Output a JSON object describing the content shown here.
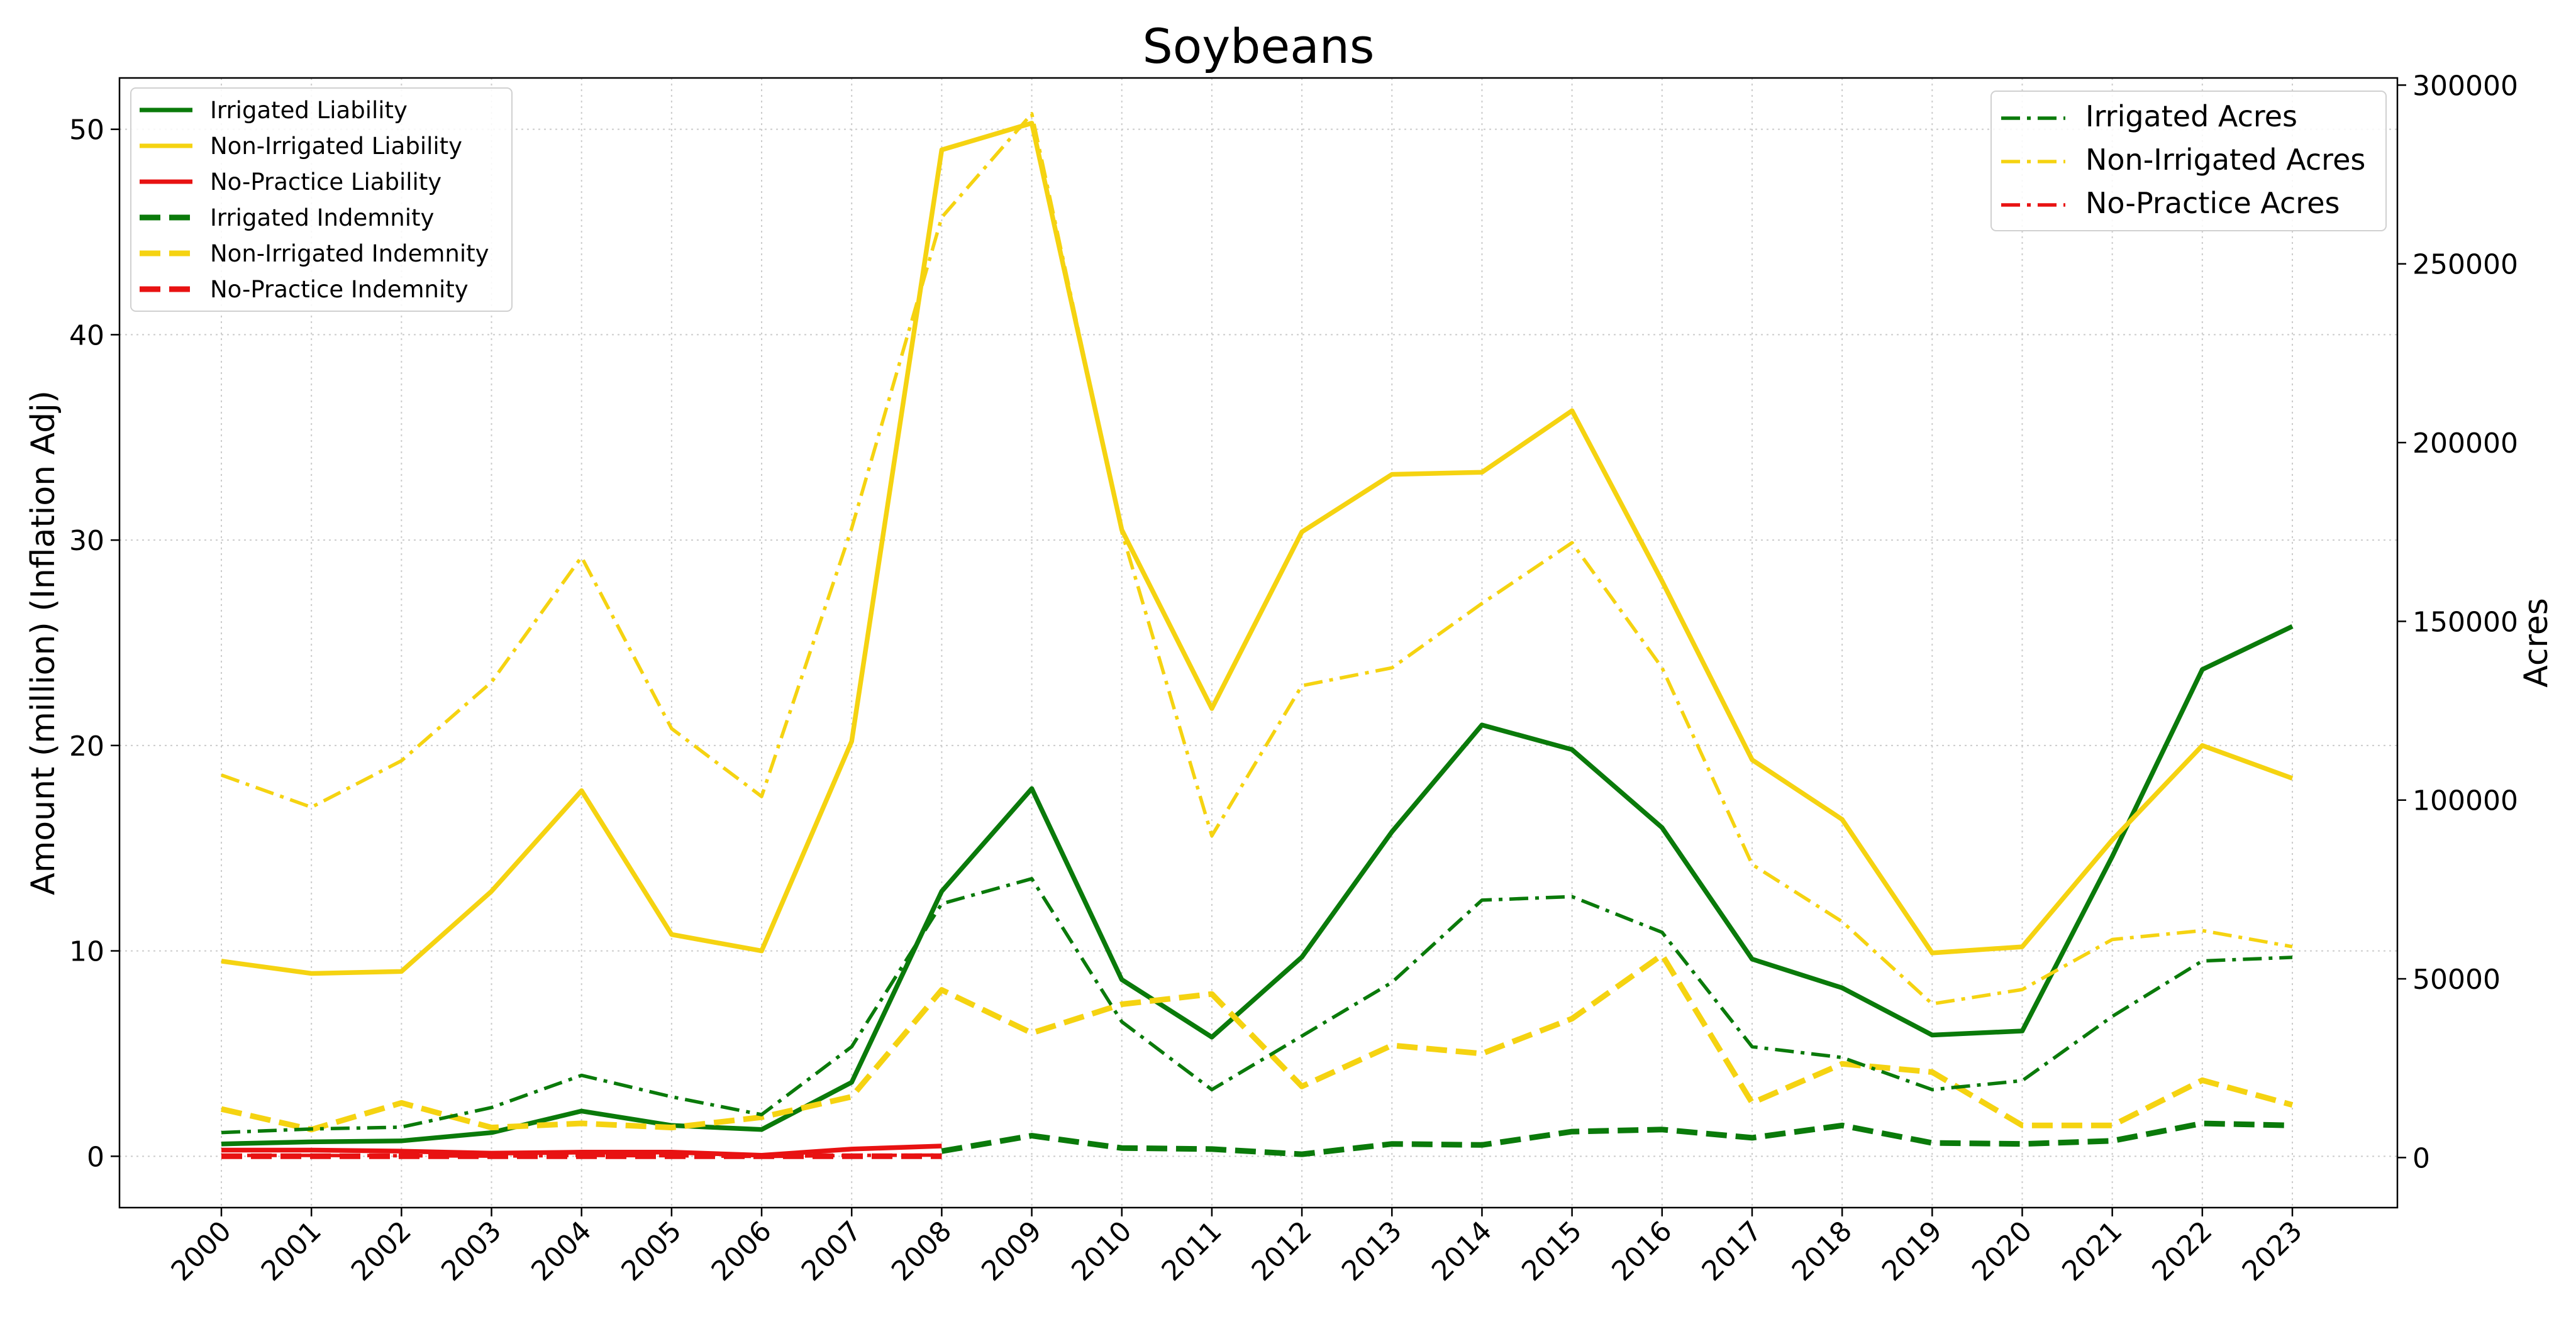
{
  "chart_data": {
    "type": "line",
    "title": "Soybeans",
    "ylabel_left": "Amount (million) (Inflation Adj)",
    "ylabel_right": "Acres",
    "xlabel": "",
    "grid": true,
    "categories": [
      "2000",
      "2001",
      "2002",
      "2003",
      "2004",
      "2005",
      "2006",
      "2007",
      "2008",
      "2009",
      "2010",
      "2011",
      "2012",
      "2013",
      "2014",
      "2015",
      "2016",
      "2017",
      "2018",
      "2019",
      "2020",
      "2021",
      "2022",
      "2023"
    ],
    "ylim_left": [
      -2.5,
      52.5
    ],
    "yticks_left": [
      "0",
      "10",
      "20",
      "30",
      "40",
      "50"
    ],
    "ylim_right": [
      -14000,
      302000
    ],
    "yticks_right": [
      "0",
      "50000",
      "100000",
      "150000",
      "200000",
      "250000",
      "300000"
    ],
    "legend_left": {
      "placement": "upper-left",
      "entries": [
        "Irrigated Liability",
        "Non-Irrigated Liability",
        "No-Practice Liability",
        "Irrigated Indemnity",
        "Non-Irrigated Indemnity",
        "No-Practice Indemnity"
      ]
    },
    "legend_right": {
      "placement": "upper-right",
      "entries": [
        "Irrigated Acres",
        "Non-Irrigated Acres",
        "No-Practice Acres"
      ]
    },
    "series": [
      {
        "name": "Irrigated Liability",
        "axis": "left",
        "style": "solid",
        "color": "#0a7a0a",
        "values": [
          0.6,
          0.7,
          0.75,
          1.15,
          2.2,
          1.5,
          1.3,
          3.6,
          12.9,
          17.9,
          8.6,
          5.8,
          9.7,
          15.8,
          21.0,
          19.8,
          16.0,
          9.6,
          8.2,
          5.9,
          6.1,
          14.6,
          23.7,
          25.8
        ]
      },
      {
        "name": "Non-Irrigated Liability",
        "axis": "left",
        "style": "solid",
        "color": "#f5d311",
        "values": [
          9.5,
          8.9,
          9.0,
          12.9,
          17.8,
          10.8,
          10.0,
          20.2,
          49.0,
          50.3,
          30.5,
          21.8,
          30.4,
          33.2,
          33.3,
          36.3,
          28.0,
          19.3,
          16.4,
          9.9,
          10.2,
          15.4,
          20.0,
          18.4
        ]
      },
      {
        "name": "No-Practice Liability",
        "axis": "left",
        "style": "solid",
        "color": "#e81212",
        "values": [
          0.3,
          0.3,
          0.25,
          0.15,
          0.2,
          0.2,
          0.05,
          0.35,
          0.5,
          null,
          null,
          null,
          null,
          null,
          null,
          null,
          null,
          null,
          null,
          null,
          null,
          null,
          null,
          null
        ]
      },
      {
        "name": "Irrigated Indemnity",
        "axis": "left",
        "style": "dashed",
        "color": "#0a7a0a",
        "values": [
          null,
          null,
          null,
          null,
          null,
          null,
          null,
          null,
          0.25,
          1.0,
          0.4,
          0.35,
          0.1,
          0.6,
          0.55,
          1.2,
          1.3,
          0.9,
          1.5,
          0.65,
          0.6,
          0.75,
          1.6,
          1.5
        ]
      },
      {
        "name": "Non-Irrigated Indemnity",
        "axis": "left",
        "style": "dashed",
        "color": "#f5d311",
        "values": [
          2.3,
          1.3,
          2.6,
          1.4,
          1.6,
          1.4,
          1.9,
          2.9,
          8.1,
          6.0,
          7.4,
          7.9,
          3.4,
          5.4,
          5.0,
          6.7,
          9.8,
          2.6,
          4.5,
          4.1,
          1.5,
          1.5,
          3.7,
          2.5
        ]
      },
      {
        "name": "No-Practice Indemnity",
        "axis": "left",
        "style": "dashed",
        "color": "#e81212",
        "values": [
          0.0,
          0.0,
          0.0,
          0.0,
          0.0,
          0.0,
          0.0,
          0.0,
          0.0,
          null,
          null,
          null,
          null,
          null,
          null,
          null,
          null,
          null,
          null,
          null,
          null,
          null,
          null,
          null
        ]
      },
      {
        "name": "Irrigated Acres",
        "axis": "right",
        "style": "dashdot",
        "color": "#0a7a0a",
        "values": [
          7000,
          8000,
          8500,
          14000,
          23000,
          17000,
          12000,
          31000,
          71000,
          78000,
          38000,
          19000,
          34000,
          49000,
          72000,
          73000,
          63000,
          31000,
          28000,
          19000,
          21500,
          39500,
          55000,
          56000
        ]
      },
      {
        "name": "Non-Irrigated Acres",
        "axis": "right",
        "style": "dashdot",
        "color": "#f5d311",
        "values": [
          107000,
          98000,
          111000,
          133000,
          168000,
          120000,
          101000,
          176000,
          263000,
          292000,
          175000,
          90000,
          132000,
          137000,
          155000,
          172000,
          137000,
          82000,
          66000,
          43000,
          47000,
          61000,
          63500,
          59000
        ]
      },
      {
        "name": "No-Practice Acres",
        "axis": "right",
        "style": "dashdot",
        "color": "#e81212",
        "values": [
          600,
          600,
          500,
          400,
          600,
          500,
          300,
          600,
          700,
          null,
          null,
          null,
          null,
          null,
          null,
          null,
          null,
          null,
          null,
          null,
          null,
          null,
          null,
          null
        ]
      }
    ]
  }
}
